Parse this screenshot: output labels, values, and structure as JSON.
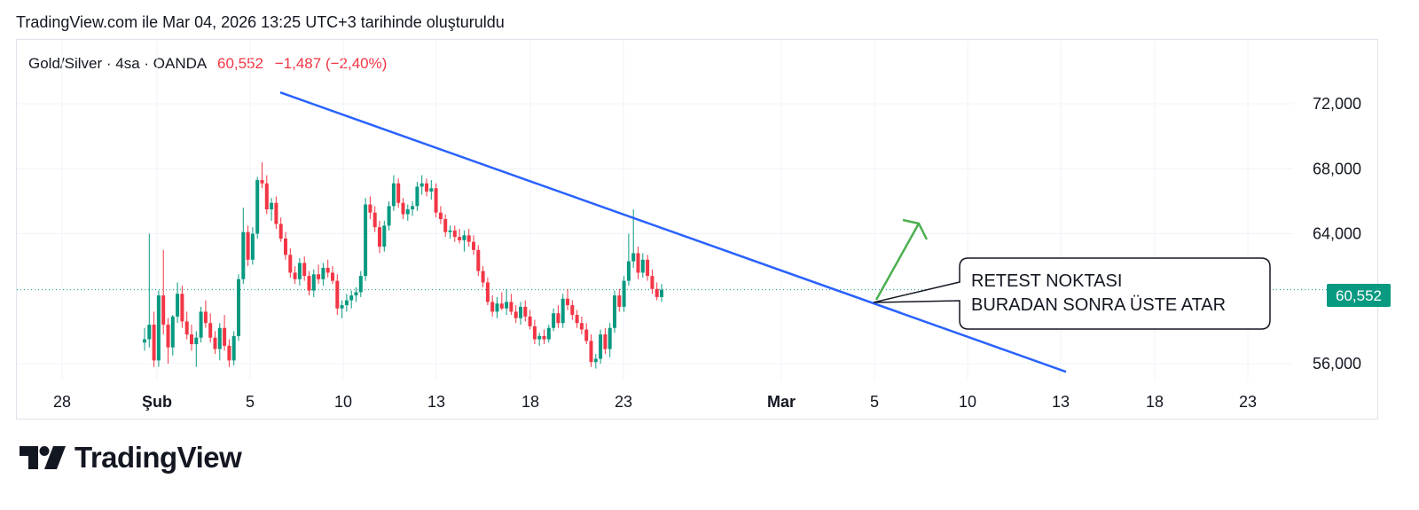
{
  "header": {
    "caption": "TradingView.com ile Mar 04, 2026 13:25 UTC+3 tarihinde oluşturuldu"
  },
  "symbol": {
    "name": "Gold/Silver · 4sa · OANDA",
    "price": "60,552",
    "change": "−1,487 (−2,40%)"
  },
  "price_tag": "60,552",
  "annotation": {
    "line1": "RETEST NOKTASI",
    "line2": "BURADAN SONRA ÜSTE ATAR"
  },
  "logo": {
    "text": "TradingView"
  },
  "colors": {
    "up": "#089981",
    "down": "#f23645",
    "trendline": "#2962ff",
    "arrow": "#4caf50",
    "tag_bg": "#089981"
  },
  "chart_data": {
    "type": "candlestick",
    "interval": "4sa",
    "x_ticks": [
      "28",
      "Şub",
      "5",
      "10",
      "13",
      "18",
      "23",
      "Mar",
      "5",
      "10",
      "13",
      "18",
      "23"
    ],
    "y_ticks": [
      "72,000",
      "68,000",
      "64,000",
      "56,000"
    ],
    "ylim": [
      55.3,
      74.5
    ],
    "last_price": 60.552,
    "trendline": {
      "from": {
        "date": "Feb 06",
        "price": 72.7
      },
      "to": {
        "date": "Mar 13",
        "price": 55.5
      }
    },
    "candles": [
      [
        57.3,
        58.2,
        56.8,
        57.5
      ],
      [
        57.5,
        64.0,
        57.0,
        58.4
      ],
      [
        58.4,
        59.2,
        55.8,
        56.2
      ],
      [
        56.2,
        60.5,
        55.8,
        60.2
      ],
      [
        60.2,
        63.0,
        57.8,
        58.4
      ],
      [
        58.4,
        58.8,
        56.0,
        57.0
      ],
      [
        57.0,
        59.0,
        56.5,
        58.9
      ],
      [
        58.9,
        61.0,
        58.5,
        60.3
      ],
      [
        60.3,
        60.8,
        58.2,
        58.6
      ],
      [
        58.6,
        59.2,
        57.5,
        57.8
      ],
      [
        57.8,
        58.4,
        56.8,
        57.2
      ],
      [
        57.2,
        58.0,
        55.8,
        57.6
      ],
      [
        57.6,
        59.5,
        57.3,
        59.2
      ],
      [
        59.2,
        59.9,
        58.2,
        58.5
      ],
      [
        58.5,
        59.1,
        57.3,
        57.6
      ],
      [
        57.6,
        58.0,
        56.6,
        56.9
      ],
      [
        56.9,
        58.5,
        56.2,
        58.2
      ],
      [
        58.2,
        59.0,
        56.8,
        57.1
      ],
      [
        57.1,
        57.5,
        55.8,
        56.2
      ],
      [
        56.2,
        58.0,
        55.9,
        57.7
      ],
      [
        57.7,
        61.5,
        57.4,
        61.2
      ],
      [
        61.2,
        65.6,
        60.9,
        64.1
      ],
      [
        64.1,
        64.5,
        62.0,
        62.4
      ],
      [
        62.4,
        64.4,
        62.1,
        64.0
      ],
      [
        64.0,
        67.5,
        63.7,
        67.3
      ],
      [
        67.3,
        68.4,
        66.8,
        67.1
      ],
      [
        67.1,
        67.6,
        65.2,
        65.5
      ],
      [
        65.5,
        66.2,
        64.8,
        65.9
      ],
      [
        65.9,
        66.3,
        64.3,
        64.6
      ],
      [
        64.6,
        65.0,
        63.5,
        63.7
      ],
      [
        63.7,
        64.1,
        62.4,
        62.7
      ],
      [
        62.7,
        63.1,
        61.3,
        61.6
      ],
      [
        61.6,
        62.0,
        60.9,
        61.2
      ],
      [
        61.2,
        62.5,
        60.8,
        62.2
      ],
      [
        62.2,
        62.6,
        61.1,
        61.4
      ],
      [
        61.4,
        61.7,
        60.2,
        60.5
      ],
      [
        60.5,
        61.8,
        60.1,
        61.5
      ],
      [
        61.5,
        62.1,
        60.9,
        61.2
      ],
      [
        61.2,
        62.2,
        60.8,
        61.9
      ],
      [
        61.9,
        62.4,
        61.3,
        61.6
      ],
      [
        61.6,
        62.0,
        60.9,
        61.1
      ],
      [
        61.1,
        61.5,
        59.0,
        59.4
      ],
      [
        59.4,
        59.9,
        58.8,
        59.6
      ],
      [
        59.6,
        60.3,
        59.2,
        59.9
      ],
      [
        59.9,
        60.5,
        59.4,
        60.2
      ],
      [
        60.2,
        60.7,
        59.8,
        60.4
      ],
      [
        60.4,
        61.7,
        60.1,
        61.4
      ],
      [
        61.4,
        66.2,
        61.1,
        65.8
      ],
      [
        65.8,
        66.3,
        64.9,
        65.3
      ],
      [
        65.3,
        65.7,
        64.1,
        64.4
      ],
      [
        64.4,
        64.8,
        62.8,
        63.2
      ],
      [
        63.2,
        64.8,
        62.9,
        64.5
      ],
      [
        64.5,
        66.0,
        64.2,
        65.7
      ],
      [
        65.7,
        67.6,
        65.4,
        67.1
      ],
      [
        67.1,
        67.4,
        65.6,
        65.9
      ],
      [
        65.9,
        66.2,
        64.9,
        65.2
      ],
      [
        65.2,
        65.8,
        64.8,
        65.5
      ],
      [
        65.5,
        66.0,
        65.1,
        65.7
      ],
      [
        65.7,
        67.2,
        65.4,
        66.9
      ],
      [
        66.9,
        67.6,
        66.4,
        67.1
      ],
      [
        67.1,
        67.4,
        66.3,
        66.6
      ],
      [
        66.6,
        67.3,
        66.1,
        66.8
      ],
      [
        66.8,
        67.1,
        65.0,
        65.3
      ],
      [
        65.3,
        65.7,
        64.6,
        64.9
      ],
      [
        64.9,
        65.2,
        63.8,
        64.1
      ],
      [
        64.1,
        64.5,
        63.7,
        64.2
      ],
      [
        64.2,
        64.5,
        63.5,
        63.8
      ],
      [
        63.8,
        64.3,
        63.4,
        63.6
      ],
      [
        63.6,
        64.2,
        62.9,
        63.9
      ],
      [
        63.9,
        64.3,
        63.2,
        63.5
      ],
      [
        63.5,
        63.9,
        62.7,
        63.0
      ],
      [
        63.0,
        63.3,
        61.4,
        61.7
      ],
      [
        61.7,
        62.0,
        60.7,
        61.0
      ],
      [
        61.0,
        61.3,
        59.6,
        59.8
      ],
      [
        59.8,
        60.2,
        58.9,
        59.2
      ],
      [
        59.2,
        60.1,
        58.8,
        59.7
      ],
      [
        59.7,
        60.4,
        59.3,
        59.4
      ],
      [
        59.4,
        60.6,
        59.0,
        59.8
      ],
      [
        59.8,
        60.3,
        59.0,
        59.2
      ],
      [
        59.2,
        59.6,
        58.5,
        58.8
      ],
      [
        58.8,
        59.8,
        58.4,
        59.5
      ],
      [
        59.5,
        59.9,
        58.6,
        58.9
      ],
      [
        58.9,
        59.3,
        58.1,
        58.3
      ],
      [
        58.3,
        58.7,
        57.2,
        57.5
      ],
      [
        57.5,
        57.9,
        57.1,
        57.7
      ],
      [
        57.7,
        58.1,
        57.2,
        57.5
      ],
      [
        57.5,
        58.4,
        57.3,
        58.2
      ],
      [
        58.2,
        59.4,
        58.0,
        59.1
      ],
      [
        59.1,
        59.6,
        58.2,
        58.5
      ],
      [
        58.5,
        60.3,
        58.2,
        60.0
      ],
      [
        60.0,
        60.6,
        59.3,
        59.6
      ],
      [
        59.6,
        59.9,
        58.7,
        59.0
      ],
      [
        59.0,
        59.3,
        58.2,
        58.5
      ],
      [
        58.5,
        58.9,
        57.8,
        58.1
      ],
      [
        58.1,
        58.5,
        57.2,
        57.4
      ],
      [
        57.4,
        57.8,
        55.8,
        56.1
      ],
      [
        56.1,
        56.6,
        55.7,
        56.3
      ],
      [
        56.3,
        58.1,
        56.0,
        57.8
      ],
      [
        57.8,
        58.2,
        56.6,
        56.9
      ],
      [
        56.9,
        58.5,
        56.4,
        58.2
      ],
      [
        58.2,
        60.5,
        57.9,
        60.2
      ],
      [
        60.2,
        60.6,
        59.2,
        59.5
      ],
      [
        59.5,
        61.4,
        59.2,
        61.1
      ],
      [
        61.1,
        64.0,
        60.8,
        62.3
      ],
      [
        62.3,
        65.5,
        61.9,
        62.8
      ],
      [
        62.8,
        63.2,
        61.2,
        61.6
      ],
      [
        61.6,
        62.8,
        61.3,
        62.4
      ],
      [
        62.4,
        62.7,
        61.1,
        61.4
      ],
      [
        61.4,
        61.8,
        60.3,
        60.6
      ],
      [
        60.6,
        61.0,
        59.9,
        60.1
      ],
      [
        60.1,
        60.9,
        59.8,
        60.552
      ]
    ]
  }
}
